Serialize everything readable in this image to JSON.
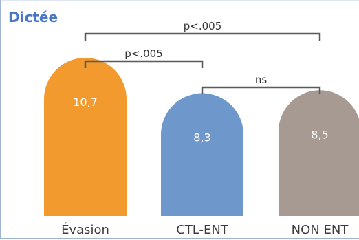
{
  "title": "Dictée",
  "chart_data": {
    "type": "bar",
    "title": "Dictée",
    "categories": [
      "Évasion",
      "CTL-ENT",
      "NON ENT"
    ],
    "values": [
      10.7,
      8.3,
      8.5
    ],
    "value_labels": [
      "10,7",
      "8,3",
      "8,5"
    ],
    "colors": [
      "#f29a2e",
      "#6e97cb",
      "#a69a92"
    ],
    "ylim": [
      0,
      12
    ],
    "grid": false,
    "legend": "none",
    "xlabel": "",
    "ylabel": "",
    "significance": [
      {
        "from": 0,
        "to": 2,
        "label": "p<.005"
      },
      {
        "from": 0,
        "to": 1,
        "label": "p<.005"
      },
      {
        "from": 1,
        "to": 2,
        "label": "ns"
      }
    ]
  }
}
